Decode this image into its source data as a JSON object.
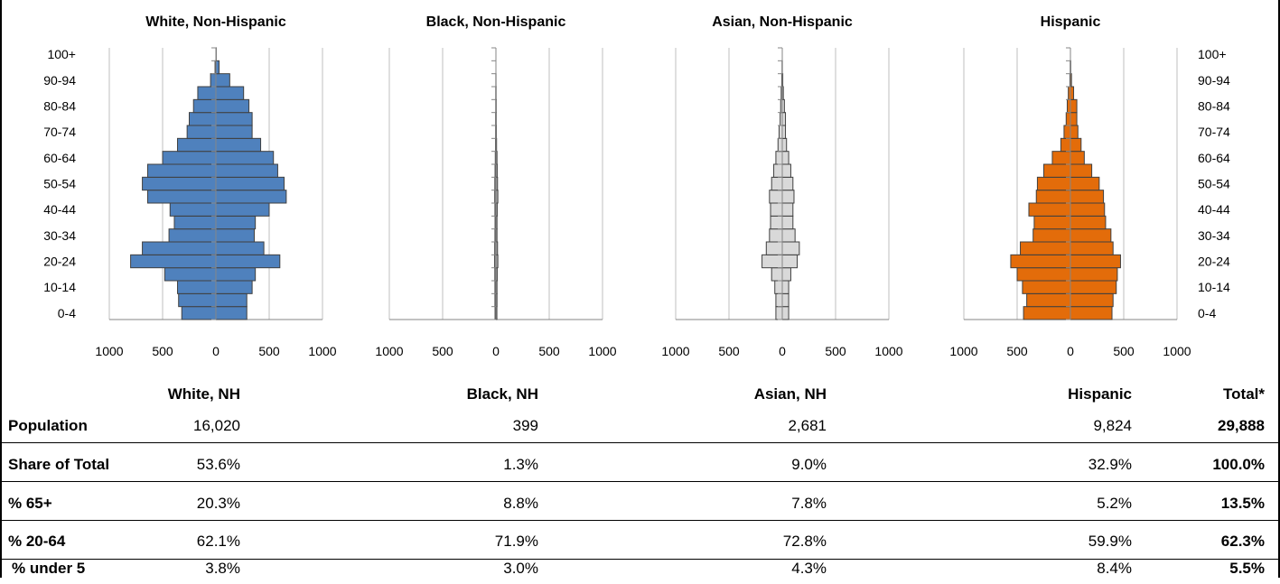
{
  "chart_data": [
    {
      "type": "bar",
      "orientation": "horizontal",
      "title": "White, Non-Hispanic",
      "categories": [
        "0-4",
        "5-9",
        "10-14",
        "15-19",
        "20-24",
        "25-29",
        "30-34",
        "35-39",
        "40-44",
        "45-49",
        "50-54",
        "55-59",
        "60-64",
        "65-69",
        "70-74",
        "75-79",
        "80-84",
        "85-89",
        "90-94",
        "95-99",
        "100+"
      ],
      "category_labels_shown": [
        "0-4",
        "10-14",
        "20-24",
        "30-34",
        "40-44",
        "50-54",
        "60-64",
        "70-74",
        "80-84",
        "90-94",
        "100+"
      ],
      "series": [
        {
          "values": [
            -320,
            -350,
            -360,
            -480,
            -800,
            -690,
            -440,
            -390,
            -430,
            -640,
            -690,
            -640,
            -500,
            -360,
            -270,
            -250,
            -210,
            -170,
            -50,
            -8,
            0
          ]
        },
        {
          "values": [
            290,
            290,
            340,
            370,
            600,
            450,
            360,
            370,
            500,
            660,
            640,
            580,
            540,
            420,
            340,
            340,
            310,
            260,
            130,
            30,
            3
          ]
        }
      ],
      "xticks": [
        "1000",
        "500",
        "0",
        "500",
        "1000"
      ],
      "xlim": [
        -1000,
        1000
      ],
      "color": "#4f81bd",
      "grid": true
    },
    {
      "type": "bar",
      "orientation": "horizontal",
      "title": "Black, Non-Hispanic",
      "categories": [
        "0-4",
        "5-9",
        "10-14",
        "15-19",
        "20-24",
        "25-29",
        "30-34",
        "35-39",
        "40-44",
        "45-49",
        "50-54",
        "55-59",
        "60-64",
        "65-69",
        "70-74",
        "75-79",
        "80-84",
        "85-89",
        "90-94",
        "95-99",
        "100+"
      ],
      "series": [
        {
          "values": [
            -8,
            -9,
            -9,
            -10,
            -12,
            -11,
            -9,
            -8,
            -9,
            -11,
            -10,
            -8,
            -6,
            -4,
            -3,
            -3,
            -2,
            -2,
            -1,
            0,
            0
          ]
        },
        {
          "values": [
            9,
            10,
            10,
            12,
            18,
            15,
            10,
            10,
            12,
            18,
            15,
            12,
            10,
            6,
            4,
            3,
            3,
            2,
            1,
            0,
            0
          ]
        }
      ],
      "xticks": [
        "1000",
        "500",
        "0",
        "500",
        "1000"
      ],
      "xlim": [
        -1000,
        1000
      ],
      "color": "#a6a6a6",
      "grid": true
    },
    {
      "type": "bar",
      "orientation": "horizontal",
      "title": "Asian, Non-Hispanic",
      "categories": [
        "0-4",
        "5-9",
        "10-14",
        "15-19",
        "20-24",
        "25-29",
        "30-34",
        "35-39",
        "40-44",
        "45-49",
        "50-54",
        "55-59",
        "60-64",
        "65-69",
        "70-74",
        "75-79",
        "80-84",
        "85-89",
        "90-94",
        "95-99",
        "100+"
      ],
      "series": [
        {
          "values": [
            -60,
            -60,
            -70,
            -100,
            -190,
            -150,
            -120,
            -110,
            -110,
            -120,
            -100,
            -80,
            -60,
            -40,
            -30,
            -20,
            -15,
            -10,
            -5,
            -2,
            0
          ]
        },
        {
          "values": [
            60,
            60,
            60,
            80,
            140,
            160,
            120,
            100,
            100,
            110,
            100,
            80,
            60,
            40,
            30,
            30,
            20,
            10,
            5,
            1,
            0
          ]
        }
      ],
      "xticks": [
        "1000",
        "500",
        "0",
        "500",
        "1000"
      ],
      "xlim": [
        -1000,
        1000
      ],
      "color": "#d9d9d9",
      "grid": true
    },
    {
      "type": "bar",
      "orientation": "horizontal",
      "title": "Hispanic",
      "categories": [
        "0-4",
        "5-9",
        "10-14",
        "15-19",
        "20-24",
        "25-29",
        "30-34",
        "35-39",
        "40-44",
        "45-49",
        "50-54",
        "55-59",
        "60-64",
        "65-69",
        "70-74",
        "75-79",
        "80-84",
        "85-89",
        "90-94",
        "95-99",
        "100+"
      ],
      "series": [
        {
          "values": [
            -440,
            -410,
            -450,
            -500,
            -560,
            -470,
            -350,
            -340,
            -390,
            -320,
            -310,
            -250,
            -170,
            -90,
            -60,
            -40,
            -30,
            -20,
            -5,
            -2,
            0
          ]
        },
        {
          "values": [
            390,
            400,
            430,
            440,
            470,
            400,
            380,
            330,
            320,
            310,
            270,
            200,
            130,
            100,
            70,
            60,
            60,
            30,
            10,
            3,
            0
          ]
        }
      ],
      "xticks": [
        "1000",
        "500",
        "0",
        "500",
        "1000"
      ],
      "xlim": [
        -1000,
        1000
      ],
      "color": "#e36c0a",
      "grid": true
    }
  ],
  "table": {
    "headers": [
      "",
      "White, NH",
      "Black, NH",
      "Asian, NH",
      "Hispanic",
      "Total*"
    ],
    "rows": [
      {
        "label": "Population",
        "values": [
          "16,020",
          "399",
          "2,681",
          "9,824",
          "29,888"
        ]
      },
      {
        "label": "Share of Total",
        "values": [
          "53.6%",
          "1.3%",
          "9.0%",
          "32.9%",
          "100.0%"
        ]
      },
      {
        "label": "% 65+",
        "values": [
          "20.3%",
          "8.8%",
          "7.8%",
          "5.2%",
          "13.5%"
        ]
      },
      {
        "label": "% 20-64",
        "values": [
          "62.1%",
          "71.9%",
          "72.8%",
          "59.9%",
          "62.3%"
        ]
      },
      {
        "label": "% under 5",
        "values": [
          "3.8%",
          "3.0%",
          "4.3%",
          "8.4%",
          "5.5%"
        ]
      }
    ]
  }
}
